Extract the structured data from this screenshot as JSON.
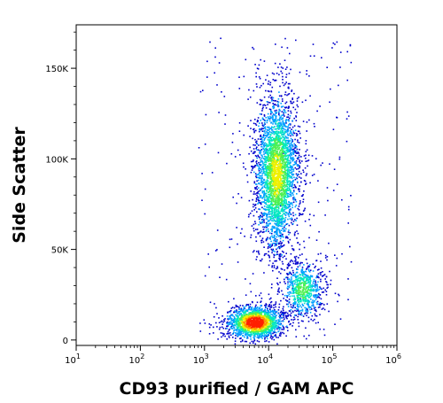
{
  "chart_data": {
    "type": "scatter",
    "xlabel": "CD93 purified / GAM APC",
    "ylabel": "Side Scatter",
    "x_scale": "log",
    "xlim": [
      10,
      1000000
    ],
    "ylim": [
      -3000,
      174000
    ],
    "x_ticks": [
      {
        "value": 10,
        "base": "10",
        "exp": "1"
      },
      {
        "value": 100,
        "base": "10",
        "exp": "2"
      },
      {
        "value": 1000,
        "base": "10",
        "exp": "3"
      },
      {
        "value": 10000,
        "base": "10",
        "exp": "4"
      },
      {
        "value": 100000,
        "base": "10",
        "exp": "5"
      },
      {
        "value": 1000000,
        "base": "10",
        "exp": "6"
      }
    ],
    "y_ticks": [
      {
        "value": 0,
        "label": "0"
      },
      {
        "value": 50000,
        "label": "50K"
      },
      {
        "value": 100000,
        "label": "100K"
      },
      {
        "value": 150000,
        "label": "150K"
      }
    ],
    "grid": false,
    "density_colormap": [
      "#0000cc",
      "#00a0ff",
      "#00e8c0",
      "#50f050",
      "#f0f000",
      "#ff9000",
      "#ff2000"
    ],
    "populations": [
      {
        "center_log_x": 3.78,
        "center_y": 10000,
        "spread_log_x": 0.22,
        "spread_y": 4500,
        "count": 1700,
        "peak_density": 7
      },
      {
        "center_log_x": 4.12,
        "center_y": 92000,
        "spread_log_x": 0.17,
        "spread_y": 22000,
        "count": 3000,
        "peak_density": 4
      },
      {
        "center_log_x": 4.52,
        "center_y": 28000,
        "spread_log_x": 0.16,
        "spread_y": 8000,
        "count": 700,
        "peak_density": 3
      }
    ]
  }
}
